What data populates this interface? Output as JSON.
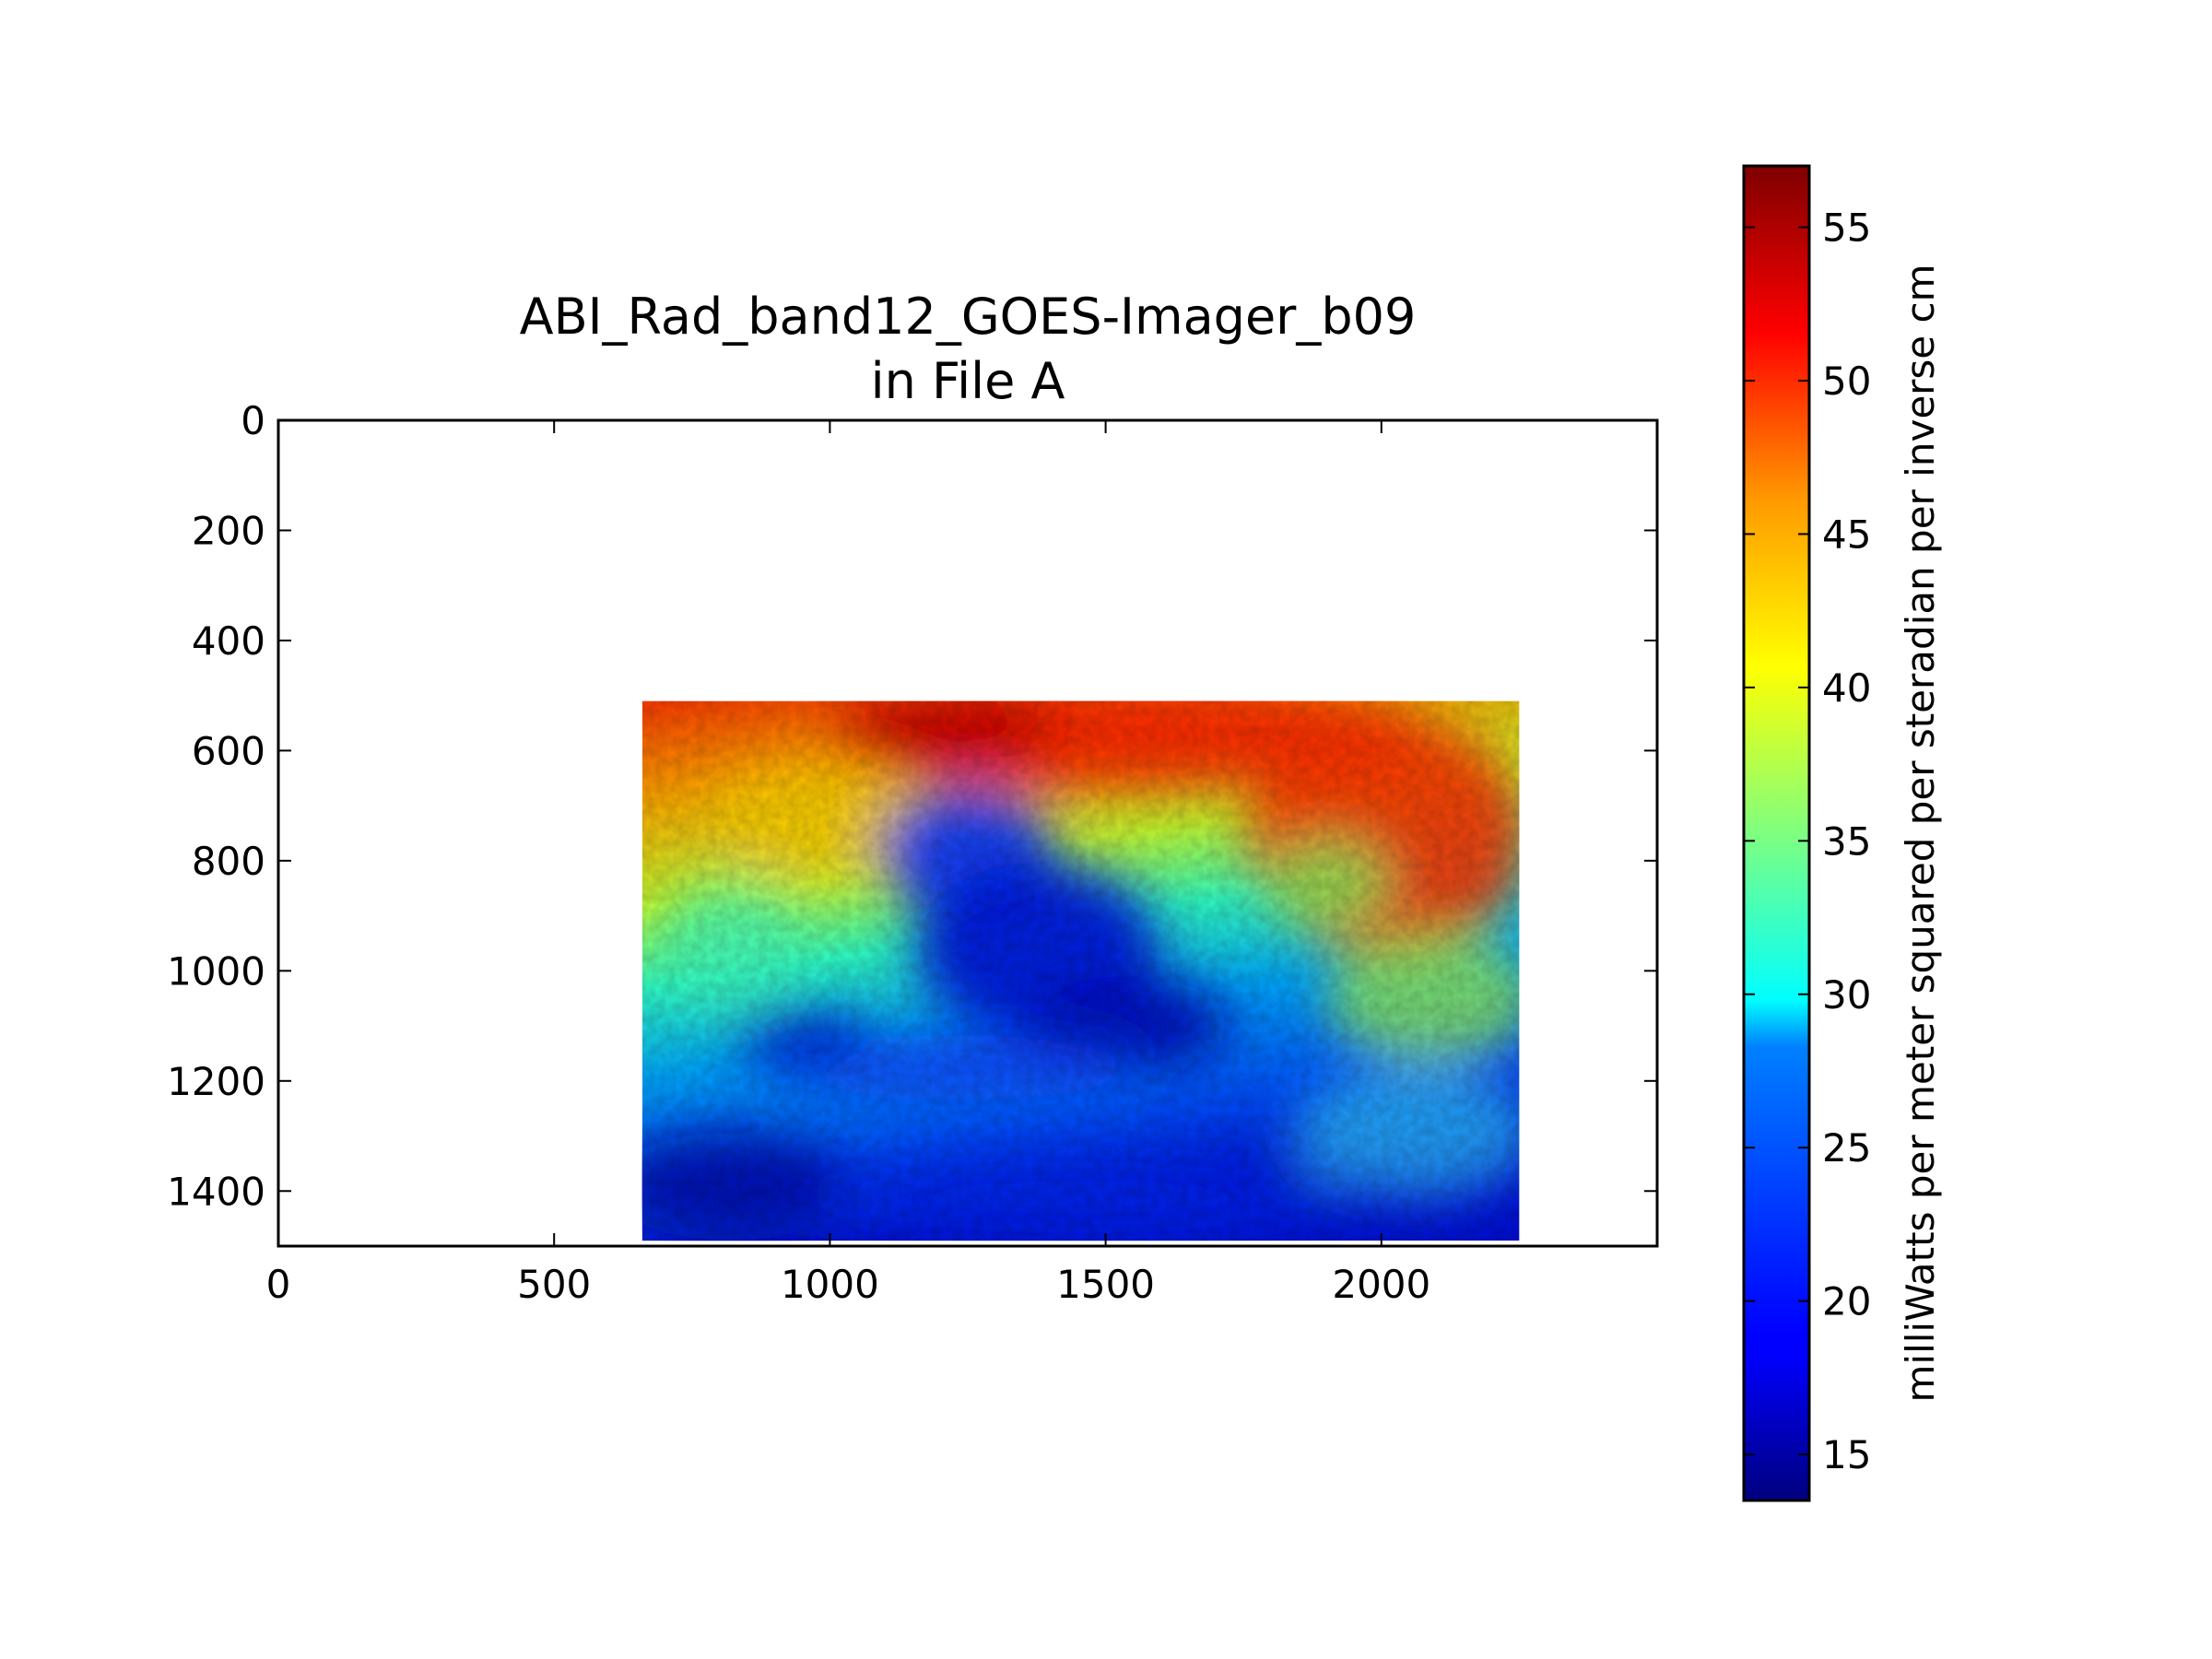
{
  "chart_data": {
    "type": "heatmap",
    "title_lines": [
      "ABI_Rad_band12_GOES-Imager_b09",
      "in File A"
    ],
    "xlim": [
      0,
      2500
    ],
    "ylim": [
      1500,
      0
    ],
    "x_ticks": [
      0,
      500,
      1000,
      1500,
      2000
    ],
    "y_ticks": [
      0,
      200,
      400,
      600,
      800,
      1000,
      1200,
      1400
    ],
    "x_tick_labels": [
      "0",
      "500",
      "1000",
      "1500",
      "2000"
    ],
    "y_tick_labels": [
      "0",
      "200",
      "400",
      "600",
      "800",
      "1000",
      "1200",
      "1400"
    ],
    "image_extent": {
      "x": [
        660,
        2250
      ],
      "y": [
        510,
        1490
      ]
    },
    "colormap": "jet",
    "colorbar": {
      "range": [
        13.5,
        57
      ],
      "ticks": [
        15,
        20,
        25,
        30,
        35,
        40,
        45,
        50,
        55
      ],
      "tick_labels": [
        "15",
        "20",
        "25",
        "30",
        "35",
        "40",
        "45",
        "50",
        "55"
      ],
      "label": "milliWatts per meter squared per steradian per inverse cm"
    },
    "approximate_value_regions": [
      {
        "description_value": "top band",
        "x": [
          660,
          2250
        ],
        "y": [
          510,
          650
        ],
        "value": 50
      },
      {
        "description_value": "cold cloud mass",
        "x": [
          1200,
          1850
        ],
        "y": [
          650,
          1200
        ],
        "value": 20
      },
      {
        "description_value": "lower left",
        "x": [
          660,
          1300
        ],
        "y": [
          1250,
          1490
        ],
        "value": 22
      },
      {
        "description_value": "right side",
        "x": [
          1900,
          2250
        ],
        "y": [
          700,
          1000
        ],
        "value": 50
      }
    ]
  }
}
